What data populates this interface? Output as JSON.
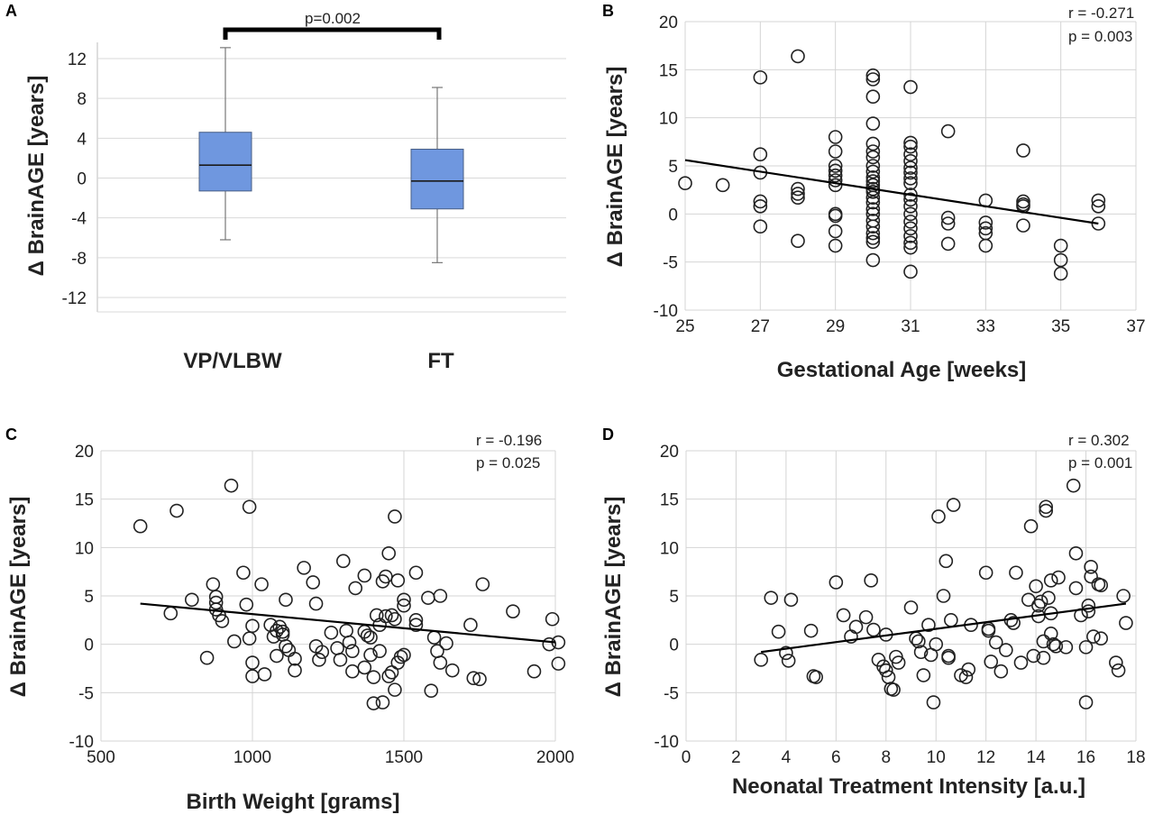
{
  "chart_data": [
    {
      "panel": "A",
      "type": "box",
      "ylabel": "Δ BrainAGE [years]",
      "ylim": [
        -14,
        14
      ],
      "yticks": [
        12,
        8,
        4,
        0,
        -4,
        -8,
        -12
      ],
      "ytick_labels": [
        "12",
        "8",
        "4",
        "0",
        "-4",
        "-8",
        "-12"
      ],
      "categories": [
        "VP/VLBW",
        "FT"
      ],
      "boxes": [
        {
          "name": "VP/VLBW",
          "min": -6.2,
          "q1": -1.3,
          "median": 1.3,
          "q3": 4.6,
          "max": 13.1
        },
        {
          "name": "FT",
          "min": -8.5,
          "q1": -3.1,
          "median": -0.3,
          "q3": 2.9,
          "max": 9.1
        }
      ],
      "annotation": "p=0.002",
      "box_color": "#6f97df"
    },
    {
      "panel": "B",
      "type": "scatter",
      "xlabel": "Gestational Age [weeks]",
      "ylabel": "Δ BrainAGE [years]",
      "xlim": [
        25,
        37
      ],
      "ylim": [
        -10,
        20
      ],
      "xticks": [
        25,
        27,
        29,
        31,
        33,
        35,
        37
      ],
      "xtick_labels": [
        "25",
        "27",
        "29",
        "31",
        "33",
        "35",
        "37"
      ],
      "yticks": [
        20,
        15,
        10,
        5,
        0,
        -5,
        -10
      ],
      "ytick_labels": [
        "20",
        "15",
        "10",
        "5",
        "0",
        "-5",
        "-10"
      ],
      "stat_r": "r = -0.271",
      "stat_p": "p = 0.003",
      "trend": {
        "x": [
          25,
          36
        ],
        "y": [
          5.6,
          -1.0
        ]
      },
      "points": [
        [
          25,
          3.2
        ],
        [
          26,
          3.0
        ],
        [
          27,
          14.2
        ],
        [
          27,
          6.2
        ],
        [
          27,
          4.3
        ],
        [
          27,
          1.3
        ],
        [
          27,
          0.8
        ],
        [
          27,
          -1.3
        ],
        [
          28,
          16.4
        ],
        [
          28,
          2.6
        ],
        [
          28,
          2.1
        ],
        [
          28,
          1.7
        ],
        [
          28,
          -2.8
        ],
        [
          29,
          8.0
        ],
        [
          29,
          6.5
        ],
        [
          29,
          5.0
        ],
        [
          29,
          4.5
        ],
        [
          29,
          4.0
        ],
        [
          29,
          3.5
        ],
        [
          29,
          3.0
        ],
        [
          29,
          0.0
        ],
        [
          29,
          -0.2
        ],
        [
          29,
          -1.8
        ],
        [
          29,
          -3.3
        ],
        [
          30,
          14.4
        ],
        [
          30,
          14.0
        ],
        [
          30,
          12.2
        ],
        [
          30,
          9.4
        ],
        [
          30,
          7.3
        ],
        [
          30,
          6.5
        ],
        [
          30,
          5.9
        ],
        [
          30,
          5.0
        ],
        [
          30,
          4.4
        ],
        [
          30,
          3.8
        ],
        [
          30,
          3.4
        ],
        [
          30,
          3.0
        ],
        [
          30,
          2.6
        ],
        [
          30,
          2.3
        ],
        [
          30,
          1.7
        ],
        [
          30,
          1.2
        ],
        [
          30,
          0.5
        ],
        [
          30,
          0.0
        ],
        [
          30,
          -0.7
        ],
        [
          30,
          -1.3
        ],
        [
          30,
          -2.0
        ],
        [
          30,
          -2.5
        ],
        [
          30,
          -2.9
        ],
        [
          30,
          -4.8
        ],
        [
          31,
          13.2
        ],
        [
          31,
          7.4
        ],
        [
          31,
          7.0
        ],
        [
          31,
          6.2
        ],
        [
          31,
          5.5
        ],
        [
          31,
          4.8
        ],
        [
          31,
          4.3
        ],
        [
          31,
          3.7
        ],
        [
          31,
          3.2
        ],
        [
          31,
          2.0
        ],
        [
          31,
          1.5
        ],
        [
          31,
          0.8
        ],
        [
          31,
          0.0
        ],
        [
          31,
          -0.8
        ],
        [
          31,
          -1.5
        ],
        [
          31,
          -2.3
        ],
        [
          31,
          -3.0
        ],
        [
          31,
          -3.5
        ],
        [
          31,
          -6.0
        ],
        [
          32,
          8.6
        ],
        [
          32,
          -0.4
        ],
        [
          32,
          -1.0
        ],
        [
          32,
          -3.1
        ],
        [
          33,
          1.4
        ],
        [
          33,
          -0.9
        ],
        [
          33,
          -1.5
        ],
        [
          33,
          -2.0
        ],
        [
          33,
          -3.3
        ],
        [
          34,
          6.6
        ],
        [
          34,
          1.3
        ],
        [
          34,
          1.0
        ],
        [
          34,
          0.8
        ],
        [
          34,
          -1.2
        ],
        [
          35,
          -3.3
        ],
        [
          35,
          -4.8
        ],
        [
          35,
          -6.2
        ],
        [
          36,
          1.4
        ],
        [
          36,
          0.8
        ],
        [
          36,
          -1.0
        ]
      ]
    },
    {
      "panel": "C",
      "type": "scatter",
      "xlabel": "Birth Weight [grams]",
      "ylabel": "Δ BrainAGE [years]",
      "xlim": [
        500,
        2000
      ],
      "ylim": [
        -10,
        20
      ],
      "xticks": [
        500,
        1000,
        1500,
        2000
      ],
      "xtick_labels": [
        "500",
        "1000",
        "1500",
        "2000"
      ],
      "yticks": [
        20,
        15,
        10,
        5,
        0,
        -5,
        -10
      ],
      "ytick_labels": [
        "20",
        "15",
        "10",
        "5",
        "0",
        "-5",
        "-10"
      ],
      "stat_r": "r = -0.196",
      "stat_p": "p = 0.025",
      "trend": {
        "x": [
          630,
          2000
        ],
        "y": [
          4.2,
          0.2
        ]
      },
      "points": [
        [
          630,
          12.2
        ],
        [
          750,
          13.8
        ],
        [
          730,
          3.2
        ],
        [
          800,
          4.6
        ],
        [
          850,
          -1.4
        ],
        [
          870,
          6.2
        ],
        [
          880,
          4.9
        ],
        [
          880,
          4.3
        ],
        [
          880,
          3.6
        ],
        [
          890,
          3.0
        ],
        [
          900,
          2.4
        ],
        [
          930,
          16.4
        ],
        [
          940,
          0.3
        ],
        [
          970,
          7.4
        ],
        [
          980,
          4.1
        ],
        [
          990,
          14.2
        ],
        [
          990,
          0.6
        ],
        [
          1000,
          1.9
        ],
        [
          1000,
          -1.9
        ],
        [
          1000,
          -3.3
        ],
        [
          1030,
          6.2
        ],
        [
          1040,
          -3.1
        ],
        [
          1060,
          2.0
        ],
        [
          1070,
          0.8
        ],
        [
          1080,
          1.4
        ],
        [
          1090,
          1.8
        ],
        [
          1100,
          1.3
        ],
        [
          1100,
          1.0
        ],
        [
          1080,
          -1.2
        ],
        [
          1110,
          4.6
        ],
        [
          1110,
          -0.2
        ],
        [
          1120,
          -0.6
        ],
        [
          1140,
          -1.5
        ],
        [
          1140,
          -2.7
        ],
        [
          1170,
          7.9
        ],
        [
          1200,
          6.4
        ],
        [
          1210,
          4.2
        ],
        [
          1210,
          -0.2
        ],
        [
          1220,
          -1.6
        ],
        [
          1230,
          -0.8
        ],
        [
          1260,
          1.2
        ],
        [
          1280,
          -0.4
        ],
        [
          1290,
          -1.6
        ],
        [
          1300,
          8.6
        ],
        [
          1310,
          1.4
        ],
        [
          1320,
          0.2
        ],
        [
          1330,
          -0.7
        ],
        [
          1330,
          -2.8
        ],
        [
          1340,
          5.8
        ],
        [
          1370,
          7.1
        ],
        [
          1370,
          1.3
        ],
        [
          1370,
          -2.4
        ],
        [
          1380,
          0.9
        ],
        [
          1390,
          0.7
        ],
        [
          1390,
          -1.1
        ],
        [
          1400,
          -3.4
        ],
        [
          1400,
          -6.1
        ],
        [
          1410,
          3.0
        ],
        [
          1420,
          2.0
        ],
        [
          1420,
          -0.7
        ],
        [
          1430,
          6.5
        ],
        [
          1430,
          -6.0
        ],
        [
          1440,
          7.0
        ],
        [
          1440,
          2.9
        ],
        [
          1450,
          9.4
        ],
        [
          1450,
          -3.3
        ],
        [
          1460,
          3.0
        ],
        [
          1460,
          -2.9
        ],
        [
          1470,
          13.2
        ],
        [
          1470,
          2.6
        ],
        [
          1470,
          -4.7
        ],
        [
          1480,
          6.6
        ],
        [
          1480,
          -1.9
        ],
        [
          1490,
          -1.3
        ],
        [
          1500,
          4.6
        ],
        [
          1500,
          4.0
        ],
        [
          1500,
          -1.1
        ],
        [
          1540,
          7.4
        ],
        [
          1540,
          2.5
        ],
        [
          1540,
          2.0
        ],
        [
          1580,
          4.8
        ],
        [
          1590,
          -4.8
        ],
        [
          1600,
          0.7
        ],
        [
          1610,
          -0.7
        ],
        [
          1620,
          5.0
        ],
        [
          1620,
          -1.9
        ],
        [
          1640,
          0.1
        ],
        [
          1660,
          -2.7
        ],
        [
          1720,
          2.0
        ],
        [
          1730,
          -3.5
        ],
        [
          1750,
          -3.6
        ],
        [
          1760,
          6.2
        ],
        [
          1860,
          3.4
        ],
        [
          1930,
          -2.8
        ],
        [
          1980,
          0.0
        ],
        [
          1990,
          2.6
        ],
        [
          2010,
          0.2
        ],
        [
          2010,
          -2.0
        ]
      ]
    },
    {
      "panel": "D",
      "type": "scatter",
      "xlabel": "Neonatal Treatment Intensity [a.u.]",
      "ylabel": "Δ BrainAGE [years]",
      "xlim": [
        0,
        18
      ],
      "ylim": [
        -10,
        20
      ],
      "xticks": [
        0,
        2,
        4,
        6,
        8,
        10,
        12,
        14,
        16,
        18
      ],
      "xtick_labels": [
        "0",
        "2",
        "4",
        "6",
        "8",
        "10",
        "12",
        "14",
        "16",
        "18"
      ],
      "yticks": [
        20,
        15,
        10,
        5,
        0,
        -5,
        -10
      ],
      "ytick_labels": [
        "20",
        "15",
        "10",
        "5",
        "0",
        "-5",
        "-10"
      ],
      "stat_r": "r = 0.302",
      "stat_p": "p = 0.001",
      "trend": {
        "x": [
          3,
          17.6
        ],
        "y": [
          -0.8,
          4.2
        ]
      },
      "points": [
        [
          3.0,
          -1.6
        ],
        [
          3.4,
          4.8
        ],
        [
          3.7,
          1.3
        ],
        [
          4.0,
          -0.9
        ],
        [
          4.1,
          -1.7
        ],
        [
          4.2,
          4.6
        ],
        [
          5.0,
          1.4
        ],
        [
          5.1,
          -3.3
        ],
        [
          5.2,
          -3.4
        ],
        [
          6.0,
          6.4
        ],
        [
          6.3,
          3.0
        ],
        [
          6.6,
          0.8
        ],
        [
          6.8,
          1.8
        ],
        [
          7.2,
          2.8
        ],
        [
          7.4,
          6.6
        ],
        [
          7.5,
          1.5
        ],
        [
          7.7,
          -1.6
        ],
        [
          7.9,
          -2.3
        ],
        [
          8.0,
          1.0
        ],
        [
          8.0,
          -2.7
        ],
        [
          8.1,
          -3.4
        ],
        [
          8.2,
          -4.6
        ],
        [
          8.3,
          -4.7
        ],
        [
          8.4,
          -1.3
        ],
        [
          8.5,
          -1.9
        ],
        [
          9.0,
          3.8
        ],
        [
          9.2,
          0.6
        ],
        [
          9.3,
          0.3
        ],
        [
          9.4,
          -0.8
        ],
        [
          9.5,
          -3.2
        ],
        [
          9.7,
          2.0
        ],
        [
          9.8,
          -1.1
        ],
        [
          9.9,
          -6.0
        ],
        [
          10.0,
          0.0
        ],
        [
          10.1,
          13.2
        ],
        [
          10.3,
          5.0
        ],
        [
          10.4,
          8.6
        ],
        [
          10.5,
          -1.2
        ],
        [
          10.5,
          -1.4
        ],
        [
          10.6,
          2.5
        ],
        [
          10.7,
          14.4
        ],
        [
          11.0,
          -3.2
        ],
        [
          11.2,
          -3.4
        ],
        [
          11.3,
          -2.6
        ],
        [
          11.4,
          2.0
        ],
        [
          12.0,
          7.4
        ],
        [
          12.1,
          1.6
        ],
        [
          12.1,
          1.4
        ],
        [
          12.2,
          -1.8
        ],
        [
          12.4,
          0.2
        ],
        [
          12.6,
          -2.8
        ],
        [
          12.8,
          -0.6
        ],
        [
          13.0,
          2.5
        ],
        [
          13.1,
          2.2
        ],
        [
          13.2,
          7.4
        ],
        [
          13.4,
          -1.9
        ],
        [
          13.7,
          4.6
        ],
        [
          13.8,
          12.2
        ],
        [
          13.9,
          -1.2
        ],
        [
          14.0,
          6.0
        ],
        [
          14.1,
          4.0
        ],
        [
          14.1,
          2.9
        ],
        [
          14.2,
          4.4
        ],
        [
          14.3,
          0.3
        ],
        [
          14.3,
          -1.4
        ],
        [
          14.4,
          14.2
        ],
        [
          14.4,
          13.8
        ],
        [
          14.5,
          4.8
        ],
        [
          14.6,
          6.6
        ],
        [
          14.6,
          3.2
        ],
        [
          14.6,
          1.1
        ],
        [
          14.7,
          0.0
        ],
        [
          14.8,
          -0.2
        ],
        [
          14.9,
          6.9
        ],
        [
          15.2,
          -0.3
        ],
        [
          15.5,
          16.4
        ],
        [
          15.6,
          9.4
        ],
        [
          15.6,
          5.8
        ],
        [
          15.8,
          3.0
        ],
        [
          16.0,
          -6.0
        ],
        [
          16.0,
          -0.3
        ],
        [
          16.1,
          4.0
        ],
        [
          16.1,
          3.4
        ],
        [
          16.2,
          8.0
        ],
        [
          16.2,
          7.0
        ],
        [
          16.3,
          0.8
        ],
        [
          16.5,
          6.2
        ],
        [
          16.6,
          6.1
        ],
        [
          16.6,
          0.6
        ],
        [
          17.2,
          -1.9
        ],
        [
          17.3,
          -2.7
        ],
        [
          17.5,
          5.0
        ],
        [
          17.6,
          2.2
        ]
      ]
    }
  ]
}
